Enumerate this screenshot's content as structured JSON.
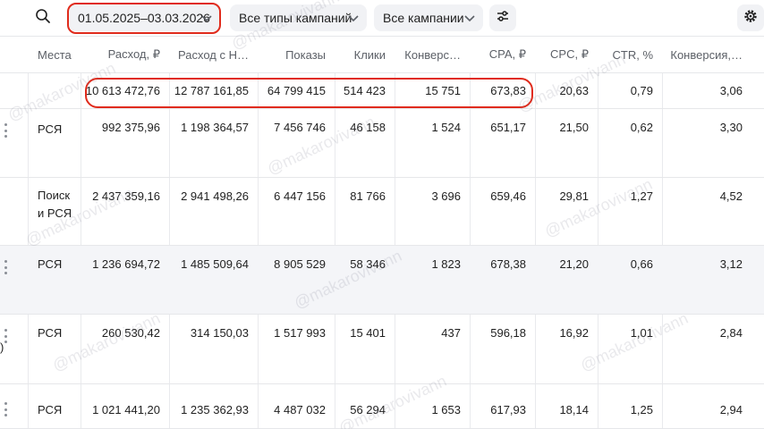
{
  "toolbar": {
    "search_icon": "search-icon",
    "date_range": "01.05.2025–03.03.2026",
    "campaign_types": "Все типы кампаний",
    "campaigns": "Все кампании",
    "filter_icon": "sliders-icon",
    "settings_icon": "gear-icon"
  },
  "columns": [
    "Места",
    "Расход, ₽",
    "Расход с Н…",
    "Показы",
    "Клики",
    "Конверс…",
    "CPA, ₽",
    "CPC, ₽",
    "CTR, %",
    "Конверсия,…"
  ],
  "totals": [
    "",
    "10 613 472,76",
    "12 787 161,85",
    "64 799 415",
    "514 423",
    "15 751",
    "673,83",
    "20,63",
    "0,79",
    "3,06"
  ],
  "rows": [
    [
      "РСЯ",
      "992 375,96",
      "1 198 364,57",
      "7 456 746",
      "46 158",
      "1 524",
      "651,17",
      "21,50",
      "0,62",
      "3,30"
    ],
    [
      "Поиск\nи РСЯ",
      "2 437 359,16",
      "2 941 498,26",
      "6 447 156",
      "81 766",
      "3 696",
      "659,46",
      "29,81",
      "1,27",
      "4,52"
    ],
    [
      "РСЯ",
      "1 236 694,72",
      "1 485 509,64",
      "8 905 529",
      "58 346",
      "1 823",
      "678,38",
      "21,20",
      "0,66",
      "3,12"
    ],
    [
      "РСЯ",
      "260 530,42",
      "314 150,03",
      "1 517 993",
      "15 401",
      "437",
      "596,18",
      "16,92",
      "1,01",
      "2,84"
    ],
    [
      "РСЯ",
      "1 021 441,20",
      "1 235 362,93",
      "4 487 032",
      "56 294",
      "1 653",
      "617,93",
      "18,14",
      "1,25",
      "2,94"
    ]
  ],
  "row4_edge_char": ")",
  "watermark": "@makarovivann",
  "colors": {
    "highlight_outline": "#e02b1c",
    "pill_bg": "#f1f2f5",
    "shaded_row": "#f4f5f8"
  }
}
